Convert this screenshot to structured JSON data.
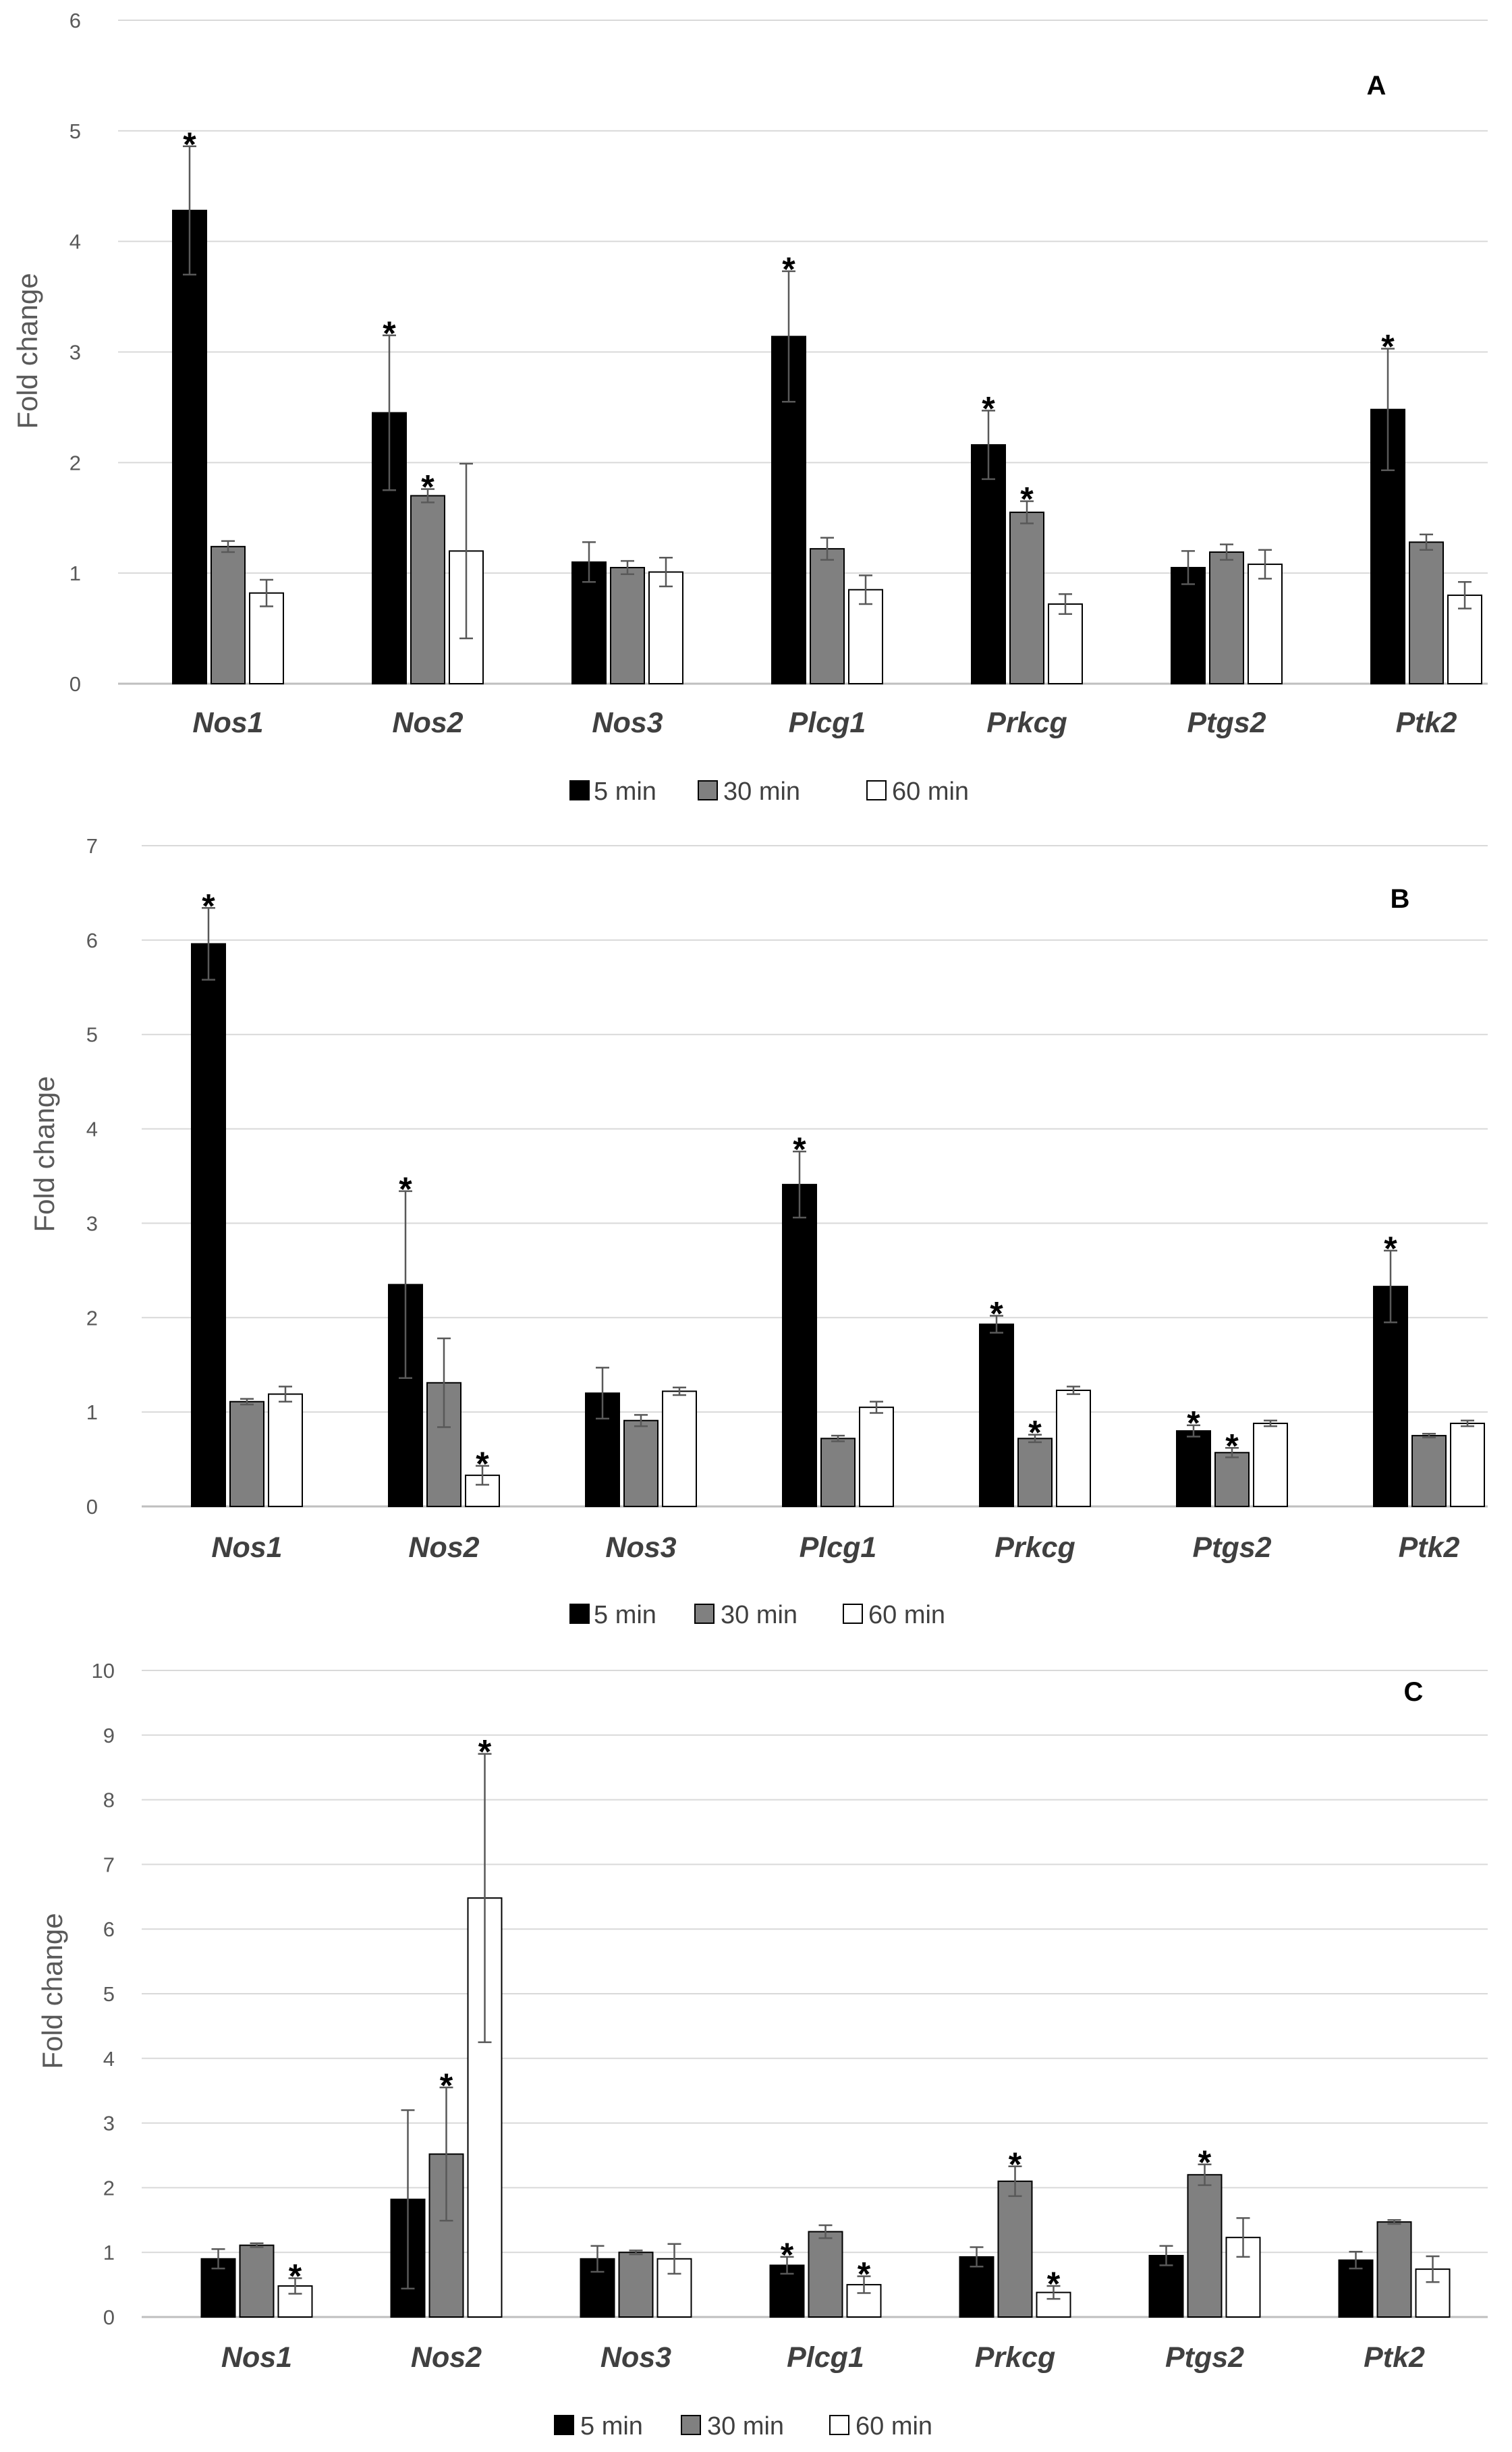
{
  "chart_data": [
    {
      "type": "bar",
      "panel": "A",
      "ylabel": "Fold change",
      "ylim": [
        0,
        6
      ],
      "yticks": [
        0,
        1,
        2,
        3,
        4,
        5,
        6
      ],
      "categories": [
        "Nos1",
        "Nos2",
        "Nos3",
        "Plcg1",
        "Prkcg",
        "Ptgs2",
        "Ptk2"
      ],
      "series": [
        {
          "name": "5 min",
          "color": "#000000",
          "values": [
            4.28,
            2.45,
            1.1,
            3.14,
            2.16,
            1.05,
            2.48
          ],
          "errors": [
            0.58,
            0.7,
            0.18,
            0.59,
            0.31,
            0.15,
            0.55
          ],
          "significant": [
            true,
            true,
            false,
            true,
            true,
            false,
            true
          ]
        },
        {
          "name": "30 min",
          "color": "#808080",
          "values": [
            1.24,
            1.7,
            1.05,
            1.22,
            1.55,
            1.19,
            1.28
          ],
          "errors": [
            0.05,
            0.06,
            0.06,
            0.1,
            0.1,
            0.07,
            0.07
          ],
          "significant": [
            false,
            true,
            false,
            false,
            true,
            false,
            false
          ]
        },
        {
          "name": "60 min",
          "color": "#ffffff",
          "values": [
            0.82,
            1.2,
            1.01,
            0.85,
            0.72,
            1.08,
            0.8
          ],
          "errors": [
            0.12,
            0.79,
            0.13,
            0.13,
            0.09,
            0.13,
            0.12
          ],
          "significant": [
            false,
            false,
            false,
            false,
            false,
            false,
            false
          ]
        }
      ],
      "legend": [
        "5 min",
        "30 min",
        "60 min"
      ],
      "significance_marker": "*"
    },
    {
      "type": "bar",
      "panel": "B",
      "ylabel": "Fold change",
      "ylim": [
        0,
        7
      ],
      "yticks": [
        0,
        1,
        2,
        3,
        4,
        5,
        6,
        7
      ],
      "categories": [
        "Nos1",
        "Nos2",
        "Nos3",
        "Plcg1",
        "Prkcg",
        "Ptgs2",
        "Ptk2"
      ],
      "series": [
        {
          "name": "5 min",
          "color": "#000000",
          "values": [
            5.96,
            2.35,
            1.2,
            3.41,
            1.93,
            0.8,
            2.33
          ],
          "errors": [
            0.38,
            0.99,
            0.27,
            0.35,
            0.09,
            0.06,
            0.38
          ],
          "significant": [
            true,
            true,
            false,
            true,
            true,
            true,
            true
          ]
        },
        {
          "name": "30 min",
          "color": "#808080",
          "values": [
            1.11,
            1.31,
            0.91,
            0.72,
            0.72,
            0.57,
            0.75
          ],
          "errors": [
            0.03,
            0.47,
            0.06,
            0.03,
            0.04,
            0.05,
            0.02
          ],
          "significant": [
            false,
            false,
            false,
            false,
            true,
            true,
            false
          ]
        },
        {
          "name": "60 min",
          "color": "#ffffff",
          "values": [
            1.19,
            0.33,
            1.22,
            1.05,
            1.23,
            0.88,
            0.88
          ],
          "errors": [
            0.08,
            0.1,
            0.04,
            0.06,
            0.04,
            0.03,
            0.03
          ],
          "significant": [
            false,
            true,
            false,
            false,
            false,
            false,
            false
          ]
        }
      ],
      "legend": [
        "5 min",
        "30 min",
        "60 min"
      ],
      "significance_marker": "*"
    },
    {
      "type": "bar",
      "panel": "C",
      "ylabel": "Fold change",
      "ylim": [
        0,
        10
      ],
      "yticks": [
        0,
        1,
        2,
        3,
        4,
        5,
        6,
        7,
        8,
        9,
        10
      ],
      "categories": [
        "Nos1",
        "Nos2",
        "Nos3",
        "Plcg1",
        "Prkcg",
        "Ptgs2",
        "Ptk2"
      ],
      "series": [
        {
          "name": "5 min",
          "color": "#000000",
          "values": [
            0.9,
            1.82,
            0.9,
            0.8,
            0.93,
            0.95,
            0.88
          ],
          "errors": [
            0.15,
            1.38,
            0.2,
            0.13,
            0.15,
            0.15,
            0.13
          ],
          "significant": [
            false,
            false,
            false,
            true,
            false,
            false,
            false
          ]
        },
        {
          "name": "30 min",
          "color": "#808080",
          "values": [
            1.11,
            2.52,
            1.0,
            1.32,
            2.1,
            2.2,
            1.47
          ],
          "errors": [
            0.03,
            1.03,
            0.03,
            0.1,
            0.23,
            0.16,
            0.03
          ],
          "significant": [
            false,
            true,
            false,
            false,
            true,
            true,
            false
          ]
        },
        {
          "name": "60 min",
          "color": "#ffffff",
          "values": [
            0.48,
            6.48,
            0.9,
            0.5,
            0.38,
            1.23,
            0.74
          ],
          "errors": [
            0.12,
            2.23,
            0.23,
            0.13,
            0.1,
            0.3,
            0.2
          ],
          "significant": [
            true,
            true,
            false,
            true,
            true,
            false,
            false
          ]
        }
      ],
      "legend": [
        "5 min",
        "30 min",
        "60 min"
      ],
      "significance_marker": "*"
    }
  ]
}
